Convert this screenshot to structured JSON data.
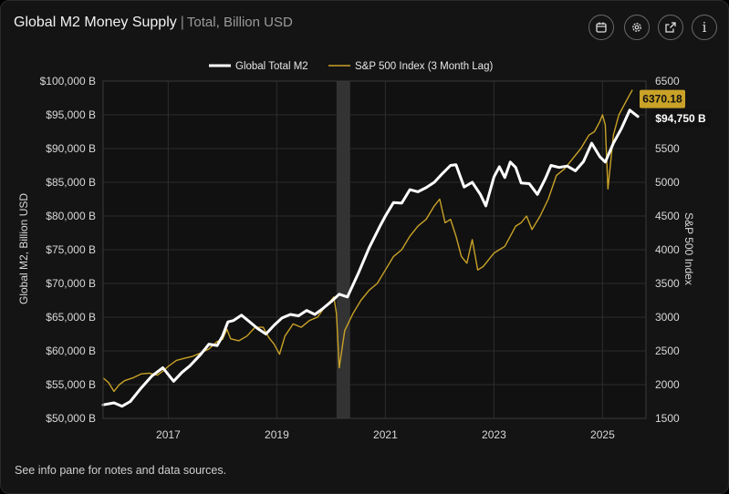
{
  "header": {
    "title": "Global M2 Money Supply",
    "separator": "|",
    "subtitle": "Total, Billion USD"
  },
  "toolbar": {
    "calendar_icon": "calendar-icon",
    "settings_icon": "gear-icon",
    "open_icon": "external-link-icon",
    "info_icon": "info-icon",
    "info_label": "i"
  },
  "footer": {
    "note": "See info pane for notes and data sources."
  },
  "chart_data": {
    "type": "line",
    "title": "Global M2 Money Supply",
    "subtitle": "Total, Billion USD",
    "xlabel": "",
    "ylabel_left": "Global M2, Billion USD",
    "ylabel_right": "S&P 500 Index",
    "xlim": [
      2015.8,
      2025.8
    ],
    "ylim_left": [
      50000,
      100000
    ],
    "ylim_right": [
      1500,
      6500
    ],
    "x_ticks": [
      2017,
      2019,
      2021,
      2023,
      2025
    ],
    "x_tick_labels": [
      "2017",
      "2019",
      "2021",
      "2023",
      "2025"
    ],
    "left_ticks": [
      50000,
      55000,
      60000,
      65000,
      70000,
      75000,
      80000,
      85000,
      90000,
      95000,
      100000
    ],
    "left_tick_labels": [
      "$50,000 B",
      "$55,000 B",
      "$60,000 B",
      "$65,000 B",
      "$70,000 B",
      "$75,000 B",
      "$80,000 B",
      "$85,000 B",
      "$90,000 B",
      "$95,000 B",
      "$100,000 B"
    ],
    "right_ticks": [
      1500,
      2000,
      2500,
      3000,
      3500,
      4000,
      4500,
      5000,
      5500,
      6000,
      6500
    ],
    "right_tick_labels": [
      "1500",
      "2000",
      "2500",
      "3000",
      "3500",
      "4000",
      "4500",
      "5000",
      "5500",
      "6000",
      "6500"
    ],
    "grid": true,
    "legend_position": "top-center",
    "shaded_region": {
      "x_start": 2020.1,
      "x_end": 2020.35,
      "color": "#333333"
    },
    "series": [
      {
        "name": "Global Total M2",
        "axis": "left",
        "color": "#ffffff",
        "x": [
          2015.8,
          2016.0,
          2016.15,
          2016.3,
          2016.5,
          2016.7,
          2016.9,
          2017.1,
          2017.25,
          2017.4,
          2017.6,
          2017.75,
          2017.9,
          2018.0,
          2018.1,
          2018.2,
          2018.35,
          2018.5,
          2018.65,
          2018.8,
          2018.95,
          2019.1,
          2019.25,
          2019.4,
          2019.55,
          2019.7,
          2019.85,
          2020.0,
          2020.15,
          2020.3,
          2020.5,
          2020.7,
          2020.9,
          2021.0,
          2021.15,
          2021.3,
          2021.45,
          2021.6,
          2021.75,
          2021.9,
          2022.05,
          2022.2,
          2022.3,
          2022.45,
          2022.6,
          2022.75,
          2022.85,
          2023.0,
          2023.1,
          2023.2,
          2023.3,
          2023.4,
          2023.5,
          2023.65,
          2023.8,
          2023.95,
          2024.05,
          2024.2,
          2024.35,
          2024.5,
          2024.65,
          2024.8,
          2024.95,
          2025.05,
          2025.2,
          2025.35,
          2025.5,
          2025.65
        ],
        "values": [
          52000,
          52300,
          51800,
          52500,
          54500,
          56300,
          57500,
          55500,
          56800,
          57800,
          59500,
          61000,
          60800,
          62200,
          64300,
          64500,
          65300,
          64300,
          63300,
          62500,
          63800,
          64900,
          65400,
          65200,
          66000,
          65400,
          66300,
          67300,
          68400,
          68000,
          71500,
          75300,
          78500,
          80000,
          82000,
          81900,
          83900,
          83600,
          84200,
          85000,
          86300,
          87500,
          87600,
          84300,
          85000,
          83200,
          81500,
          85800,
          87300,
          85700,
          88000,
          87200,
          84900,
          84800,
          83200,
          85600,
          87500,
          87200,
          87400,
          86700,
          88100,
          90800,
          88800,
          88000,
          90800,
          93000,
          95700,
          94750
        ]
      },
      {
        "name": "S&P 500 Index (3 Month Lag)",
        "axis": "right",
        "color": "#c9a227",
        "x": [
          2015.8,
          2015.9,
          2016.0,
          2016.1,
          2016.2,
          2016.35,
          2016.5,
          2016.65,
          2016.8,
          2016.9,
          2017.0,
          2017.15,
          2017.3,
          2017.45,
          2017.6,
          2017.75,
          2017.9,
          2018.0,
          2018.08,
          2018.15,
          2018.3,
          2018.45,
          2018.6,
          2018.75,
          2018.85,
          2018.95,
          2019.05,
          2019.15,
          2019.3,
          2019.45,
          2019.6,
          2019.75,
          2019.9,
          2020.0,
          2020.05,
          2020.1,
          2020.15,
          2020.25,
          2020.4,
          2020.55,
          2020.7,
          2020.85,
          2021.0,
          2021.15,
          2021.3,
          2021.45,
          2021.6,
          2021.75,
          2021.9,
          2022.0,
          2022.1,
          2022.2,
          2022.3,
          2022.4,
          2022.5,
          2022.6,
          2022.7,
          2022.8,
          2022.9,
          2023.0,
          2023.1,
          2023.2,
          2023.3,
          2023.4,
          2023.5,
          2023.6,
          2023.7,
          2023.85,
          2024.0,
          2024.15,
          2024.3,
          2024.45,
          2024.6,
          2024.75,
          2024.85,
          2024.95,
          2025.0,
          2025.05,
          2025.1,
          2025.2,
          2025.3,
          2025.4,
          2025.5,
          2025.55
        ],
        "values": [
          2100,
          2030,
          1900,
          2000,
          2060,
          2100,
          2160,
          2170,
          2140,
          2200,
          2270,
          2360,
          2390,
          2420,
          2470,
          2530,
          2640,
          2670,
          2820,
          2680,
          2650,
          2720,
          2850,
          2850,
          2700,
          2600,
          2450,
          2720,
          2900,
          2850,
          2950,
          3000,
          3170,
          3250,
          3300,
          3050,
          2250,
          2800,
          3050,
          3250,
          3400,
          3500,
          3700,
          3900,
          4000,
          4200,
          4350,
          4450,
          4650,
          4750,
          4400,
          4450,
          4200,
          3900,
          3800,
          4150,
          3700,
          3750,
          3850,
          3950,
          4000,
          4050,
          4200,
          4350,
          4400,
          4500,
          4300,
          4500,
          4750,
          5100,
          5200,
          5350,
          5500,
          5700,
          5750,
          5900,
          6000,
          5850,
          4900,
          5700,
          6000,
          6150,
          6300,
          6370.18
        ]
      }
    ],
    "end_labels": [
      {
        "series": "S&P 500 Index (3 Month Lag)",
        "text": "6370.18",
        "bg": "#c9a227",
        "fg": "#111111"
      },
      {
        "series": "Global Total M2",
        "text": "$94,750 B",
        "bg": "#111111",
        "fg": "#ffffff"
      }
    ]
  }
}
